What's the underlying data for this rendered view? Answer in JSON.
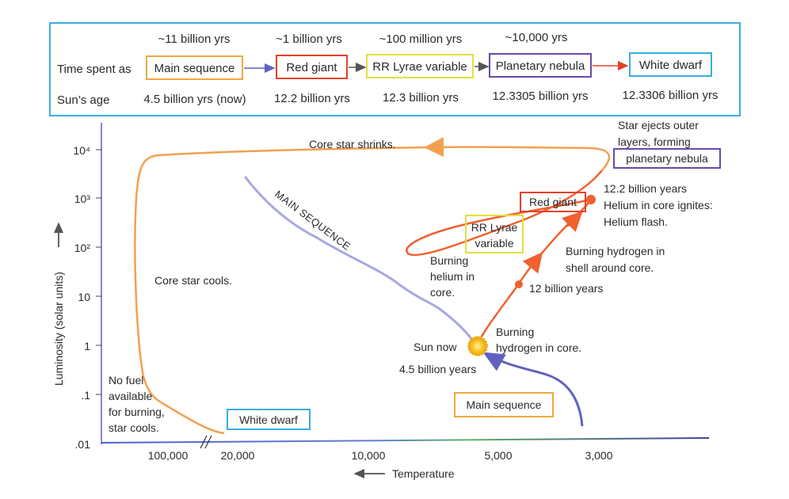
{
  "header": {
    "row_label_time": "Time spent as",
    "row_label_age": "Sun’s age",
    "stages": [
      {
        "duration": "~11 billion yrs",
        "name": "Main sequence",
        "age": "4.5 billion yrs (now)",
        "color": "#f0a840"
      },
      {
        "duration": "~1 billion yrs",
        "name": "Red giant",
        "age": "12.2 billion yrs",
        "color": "#e8402a"
      },
      {
        "duration": "~100 million yrs",
        "name": "RR Lyrae variable",
        "age": "12.3 billion yrs",
        "color": "#e0e040"
      },
      {
        "duration": "~10,000 yrs",
        "name": "Planetary nebula",
        "age": "12.3305 billion yrs",
        "color": "#6a4aa8"
      },
      {
        "duration": "",
        "name": "White dwarf",
        "age": "12.3306 billion yrs",
        "color": "#3aaee0"
      }
    ],
    "border_color": "#3aaee0"
  },
  "axes": {
    "y_label": "Luminosity (solar units)",
    "y_ticks": [
      "10⁴",
      "10³",
      "10²",
      "10",
      "1",
      ".1",
      ".01"
    ],
    "x_ticks": [
      "100,000",
      "20,000",
      "10,000",
      "5,000",
      "3,000"
    ],
    "x_label": "Temperature"
  },
  "labels": {
    "core_shrinks": "Core star shrinks.",
    "ejects_1": "Star ejects outer",
    "ejects_2": "layers, forming",
    "planetary_nebula": "planetary nebula",
    "red_giant": "Red giant",
    "rg_age": "12.2 billion years",
    "helium_ignites": "Helium in core ignites:",
    "helium_flash": "Helium flash.",
    "rr_1": "RR Lyrae",
    "rr_2": "variable",
    "main_seq_curve": "MAIN SEQUENCE",
    "burning_he_1": "Burning",
    "burning_he_2": "helium in",
    "burning_he_3": "core.",
    "shell_1": "Burning hydrogen in",
    "shell_2": "shell around core.",
    "twelve_by": "12 billion years",
    "core_cools": "Core star cools.",
    "sun_now": "Sun now",
    "burning_h_1": "Burning",
    "burning_h_2": "hydrogen in core.",
    "four_five": "4.5 billion years",
    "no_fuel_1": "No fuel",
    "no_fuel_2": "available",
    "no_fuel_3": "for burning,",
    "no_fuel_4": "star cools.",
    "white_dwarf": "White dwarf",
    "main_sequence_box": "Main sequence"
  },
  "colors": {
    "orange_track": "#f2a050",
    "red_track": "#f06030",
    "main_sequence_band": "#a8a8e0",
    "early_track": "#6060c0",
    "sun": "#f8c020"
  }
}
